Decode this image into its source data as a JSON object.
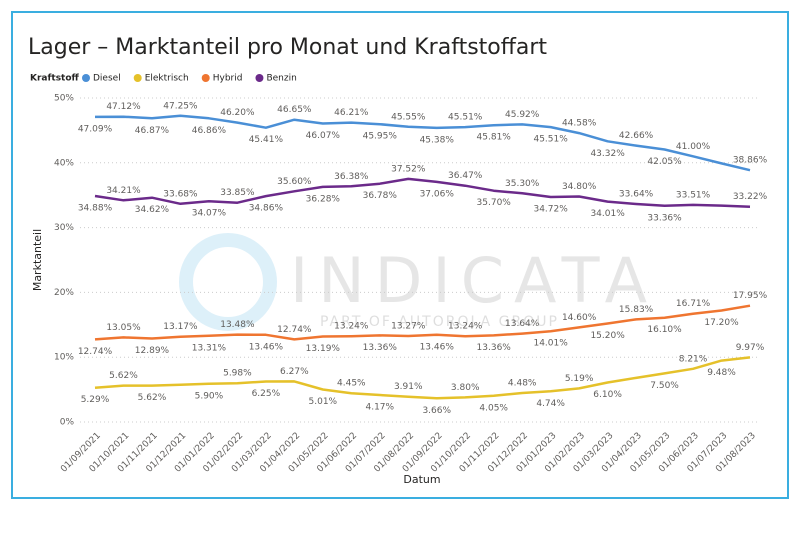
{
  "chart_data": {
    "type": "line",
    "title": "Lager – Marktanteil pro Monat und Kraftstoffart",
    "legend_title": "Kraftstoff",
    "x_label": "Datum",
    "y_label": "Marktanteil",
    "watermark": "INDICATA",
    "watermark_subtitle": "PART OF AUTOROLA GROUP",
    "categories": [
      "01/09/2021",
      "01/10/2021",
      "01/11/2021",
      "01/12/2021",
      "01/01/2022",
      "01/02/2022",
      "01/03/2022",
      "01/04/2022",
      "01/05/2022",
      "01/06/2022",
      "01/07/2022",
      "01/08/2022",
      "01/09/2022",
      "01/10/2022",
      "01/11/2022",
      "01/12/2022",
      "01/01/2023",
      "01/02/2023",
      "01/03/2023",
      "01/04/2023",
      "01/05/2023",
      "01/06/2023",
      "01/07/2023",
      "01/08/2023"
    ],
    "ylim": [
      0,
      50
    ],
    "yticks": [
      {
        "value": 0,
        "label": "0%"
      },
      {
        "value": 10,
        "label": "10%"
      },
      {
        "value": 20,
        "label": "20%"
      },
      {
        "value": 30,
        "label": "30%"
      },
      {
        "value": 40,
        "label": "40%"
      },
      {
        "value": 50,
        "label": "50%"
      }
    ],
    "grid": true,
    "series": [
      {
        "name": "Diesel",
        "color": "#4a8fd6",
        "values": [
          47.09,
          47.12,
          46.87,
          47.25,
          46.86,
          46.2,
          45.41,
          46.65,
          46.07,
          46.21,
          45.95,
          45.55,
          45.38,
          45.51,
          45.81,
          45.92,
          45.51,
          44.58,
          43.32,
          42.66,
          42.05,
          41.0,
          39.9,
          38.86
        ],
        "value_labels": [
          "47.09%",
          "47.12%",
          "46.87%",
          "47.25%",
          "46.86%",
          "46.20%",
          "45.41%",
          "46.65%",
          "46.07%",
          "46.21%",
          "45.95%",
          "45.55%",
          "45.38%",
          "45.51%",
          "45.81%",
          "45.92%",
          "45.51%",
          "44.58%",
          "43.32%",
          "42.66%",
          "42.05%",
          "41.00%",
          null,
          "38.86%"
        ]
      },
      {
        "name": "Elektrisch",
        "color": "#e5c12a",
        "values": [
          5.29,
          5.62,
          5.62,
          5.75,
          5.9,
          5.98,
          6.25,
          6.27,
          5.01,
          4.45,
          4.17,
          3.91,
          3.66,
          3.8,
          4.05,
          4.48,
          4.74,
          5.19,
          6.1,
          6.8,
          7.5,
          8.21,
          9.48,
          9.97
        ],
        "value_labels": [
          "5.29%",
          "5.62%",
          "5.62%",
          null,
          "5.90%",
          "5.98%",
          "6.25%",
          "6.27%",
          "5.01%",
          "4.45%",
          "4.17%",
          "3.91%",
          "3.66%",
          "3.80%",
          "4.05%",
          "4.48%",
          "4.74%",
          "5.19%",
          "6.10%",
          null,
          "7.50%",
          "8.21%",
          "9.48%",
          "9.97%"
        ]
      },
      {
        "name": "Hybrid",
        "color": "#ef7530",
        "values": [
          12.74,
          13.05,
          12.89,
          13.17,
          13.31,
          13.48,
          13.46,
          12.74,
          13.19,
          13.24,
          13.36,
          13.27,
          13.46,
          13.24,
          13.36,
          13.64,
          14.01,
          14.6,
          15.2,
          15.83,
          16.1,
          16.71,
          17.2,
          17.95
        ],
        "value_labels": [
          "12.74%",
          "13.05%",
          "12.89%",
          "13.17%",
          "13.31%",
          "13.48%",
          "13.46%",
          "12.74%",
          "13.19%",
          "13.24%",
          "13.36%",
          "13.27%",
          "13.46%",
          "13.24%",
          "13.36%",
          "13.64%",
          "14.01%",
          "14.60%",
          "15.20%",
          "15.83%",
          "16.10%",
          "16.71%",
          "17.20%",
          "17.95%"
        ]
      },
      {
        "name": "Benzin",
        "color": "#6b2a8a",
        "values": [
          34.88,
          34.21,
          34.62,
          33.68,
          34.07,
          33.85,
          34.86,
          35.6,
          36.28,
          36.38,
          36.78,
          37.52,
          37.06,
          36.47,
          35.7,
          35.3,
          34.72,
          34.8,
          34.01,
          33.64,
          33.36,
          33.51,
          33.4,
          33.22
        ],
        "value_labels": [
          "34.88%",
          "34.21%",
          "34.62%",
          "33.68%",
          "34.07%",
          "33.85%",
          "34.86%",
          "35.60%",
          "36.28%",
          "36.38%",
          "36.78%",
          "37.52%",
          "37.06%",
          "36.47%",
          "35.70%",
          "35.30%",
          "34.72%",
          "34.80%",
          "34.01%",
          "33.64%",
          "33.36%",
          "33.51%",
          null,
          "33.22%"
        ]
      }
    ]
  }
}
